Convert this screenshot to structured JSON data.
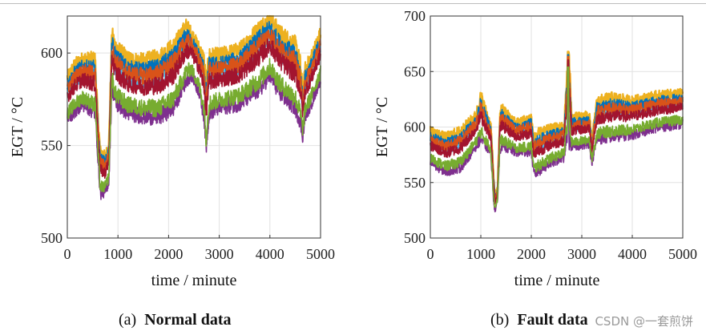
{
  "chart_data": [
    {
      "id": "normal",
      "type": "line",
      "caption_label": "(a)",
      "caption_title": "Normal data",
      "xlabel": "time / minute",
      "ylabel": "EGT / °C",
      "xlim": [
        0,
        5000
      ],
      "ylim": [
        500,
        620
      ],
      "xticks": [
        0,
        1000,
        2000,
        3000,
        4000,
        5000
      ],
      "yticks": [
        500,
        550,
        600
      ],
      "grid": true,
      "series_colors": [
        "#0072bd",
        "#d95319",
        "#7e2f8e",
        "#4dbeee",
        "#a2142f",
        "#77ac30",
        "#edb120"
      ],
      "band": {
        "x": [
          0,
          150,
          300,
          550,
          600,
          650,
          750,
          820,
          880,
          950,
          1200,
          1500,
          1800,
          2100,
          2350,
          2450,
          2600,
          2700,
          2740,
          2800,
          3000,
          3400,
          3800,
          4000,
          4200,
          4500,
          4600,
          4650,
          4700,
          4800,
          5000
        ],
        "upper": [
          588,
          595,
          598,
          598,
          568,
          548,
          545,
          552,
          612,
          605,
          598,
          597,
          599,
          605,
          616,
          612,
          604,
          598,
          585,
          600,
          600,
          603,
          615,
          620,
          612,
          606,
          596,
          580,
          593,
          598,
          612
        ],
        "lower": [
          558,
          562,
          566,
          560,
          540,
          518,
          520,
          525,
          575,
          565,
          560,
          558,
          557,
          562,
          578,
          582,
          573,
          558,
          540,
          560,
          563,
          565,
          572,
          580,
          570,
          562,
          555,
          548,
          560,
          565,
          580
        ]
      }
    },
    {
      "id": "fault",
      "type": "line",
      "caption_label": "(b)",
      "caption_title": "Fault data",
      "xlabel": "time / minute",
      "ylabel": "EGT / °C",
      "xlim": [
        0,
        5000
      ],
      "ylim": [
        500,
        700
      ],
      "xticks": [
        0,
        1000,
        2000,
        3000,
        4000,
        5000
      ],
      "yticks": [
        500,
        550,
        600,
        650,
        700
      ],
      "grid": true,
      "series_colors": [
        "#0072bd",
        "#d95319",
        "#7e2f8e",
        "#4dbeee",
        "#a2142f",
        "#77ac30",
        "#edb120"
      ],
      "band": {
        "x": [
          0,
          300,
          600,
          900,
          1000,
          1200,
          1250,
          1280,
          1330,
          1380,
          1420,
          1700,
          2000,
          2050,
          2100,
          2400,
          2650,
          2700,
          2750,
          2800,
          3150,
          3200,
          3300,
          3600,
          4000,
          4500,
          5000
        ],
        "upper": [
          598,
          592,
          598,
          612,
          630,
          602,
          560,
          540,
          545,
          615,
          618,
          605,
          610,
          590,
          595,
          600,
          602,
          645,
          668,
          610,
          612,
          590,
          625,
          628,
          625,
          630,
          632
        ],
        "lower": [
          560,
          552,
          555,
          575,
          580,
          570,
          530,
          520,
          530,
          572,
          575,
          570,
          570,
          550,
          550,
          560,
          565,
          580,
          570,
          575,
          578,
          562,
          580,
          582,
          585,
          592,
          595
        ]
      },
      "spike": {
        "x": 2730,
        "value": 668
      }
    }
  ],
  "watermark": "CSDN @一套煎饼"
}
